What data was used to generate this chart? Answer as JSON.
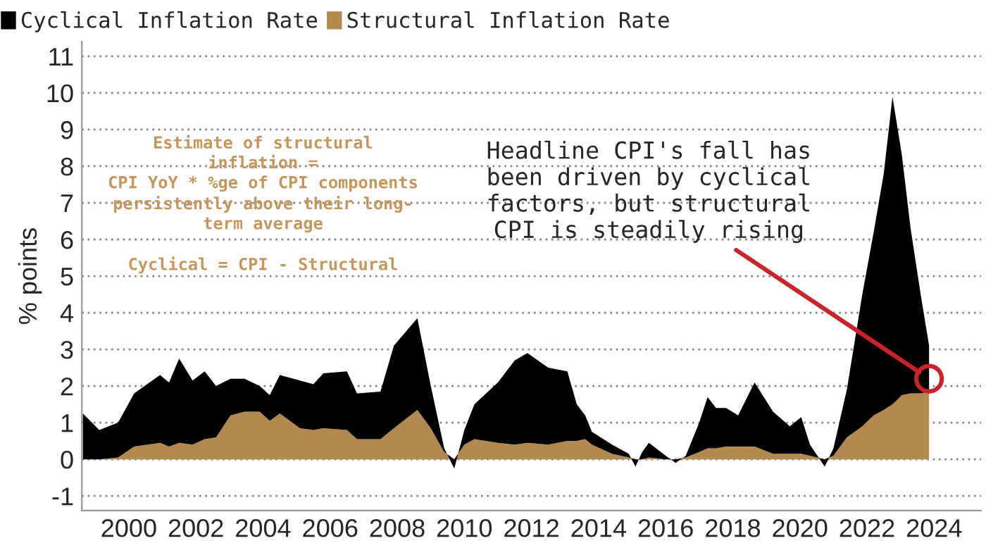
{
  "chart_data": {
    "type": "area",
    "stacked": true,
    "ylabel": "% points",
    "x": [
      1998.63,
      1999.12,
      1999.68,
      2000.16,
      2000.93,
      2001.2,
      2001.5,
      2001.9,
      2002.26,
      2002.6,
      2003.03,
      2003.45,
      2003.9,
      2004.2,
      2004.5,
      2005.1,
      2005.5,
      2005.8,
      2006.5,
      2006.8,
      2007.5,
      2007.9,
      2008.6,
      2009.0,
      2009.4,
      2009.7,
      2010.0,
      2010.3,
      2011.0,
      2011.5,
      2011.88,
      2012.5,
      2013.07,
      2013.35,
      2013.6,
      2013.8,
      2014.4,
      2014.9,
      2015.1,
      2015.3,
      2015.5,
      2016.0,
      2016.3,
      2016.6,
      2017.0,
      2017.25,
      2017.5,
      2017.8,
      2018.16,
      2018.65,
      2019.2,
      2019.7,
      2020.04,
      2020.3,
      2020.74,
      2021.0,
      2021.4,
      2021.86,
      2022.2,
      2022.5,
      2022.76,
      2023.04,
      2023.3,
      2023.6,
      2023.85
    ],
    "series": [
      {
        "name": "Structural Inflation Rate",
        "color": "#b5884d",
        "values": [
          0,
          0,
          0.05,
          0.35,
          0.45,
          0.35,
          0.45,
          0.4,
          0.55,
          0.6,
          1.2,
          1.3,
          1.3,
          1.05,
          1.25,
          0.85,
          0.8,
          0.85,
          0.8,
          0.55,
          0.55,
          0.85,
          1.35,
          0.85,
          0.2,
          0,
          0.4,
          0.55,
          0.45,
          0.4,
          0.45,
          0.4,
          0.5,
          0.5,
          0.55,
          0.4,
          0.15,
          0.05,
          0,
          0,
          0.05,
          0,
          0,
          0.05,
          0.2,
          0.3,
          0.3,
          0.35,
          0.35,
          0.35,
          0.15,
          0.15,
          0.15,
          0.1,
          0,
          0.1,
          0.6,
          0.9,
          1.2,
          1.35,
          1.5,
          1.75,
          1.8,
          1.8,
          1.85
        ]
      },
      {
        "name": "Cyclical Inflation Rate",
        "color": "#000000",
        "values": [
          1.25,
          0.8,
          0.95,
          1.45,
          1.85,
          1.75,
          2.3,
          1.75,
          1.85,
          1.4,
          1.0,
          0.9,
          0.7,
          0.7,
          1.05,
          1.3,
          1.25,
          1.5,
          1.6,
          1.25,
          1.3,
          2.25,
          2.5,
          1.15,
          0.1,
          -0.25,
          0.4,
          0.95,
          1.65,
          2.3,
          2.45,
          2.1,
          1.9,
          1.0,
          0.65,
          0.35,
          0.25,
          0.1,
          -0.2,
          0.2,
          0.4,
          0.1,
          -0.1,
          0.05,
          0.8,
          1.4,
          1.1,
          1.05,
          0.85,
          1.75,
          1.15,
          0.75,
          1.0,
          0.3,
          -0.2,
          0.2,
          1.3,
          3.6,
          5.0,
          6.45,
          8.4,
          6.55,
          4.5,
          2.7,
          1.25
        ]
      }
    ],
    "xlim": [
      1998.6,
      2025.4
    ],
    "xticks": [
      2000,
      2002,
      2004,
      2006,
      2008,
      2010,
      2012,
      2014,
      2016,
      2018,
      2020,
      2022,
      2024
    ],
    "ylim": [
      -1.4,
      11.4
    ],
    "yticks": [
      -1,
      0,
      1,
      2,
      3,
      4,
      5,
      6,
      7,
      8,
      9,
      10,
      11
    ],
    "grid": "y",
    "legend": "top left",
    "annotations": [
      "Estimate of structural\ninflation =\nCPI YoY * %ge of CPI components\npersistently above their long-\nterm average\n\nCyclical = CPI - Structural",
      {
        "text": "Headline CPI's fall has\nbeen driven by cyclical\nfactors, but structural\nCPI is steadily rising",
        "x": 2023.85,
        "y": 2.2
      }
    ]
  }
}
